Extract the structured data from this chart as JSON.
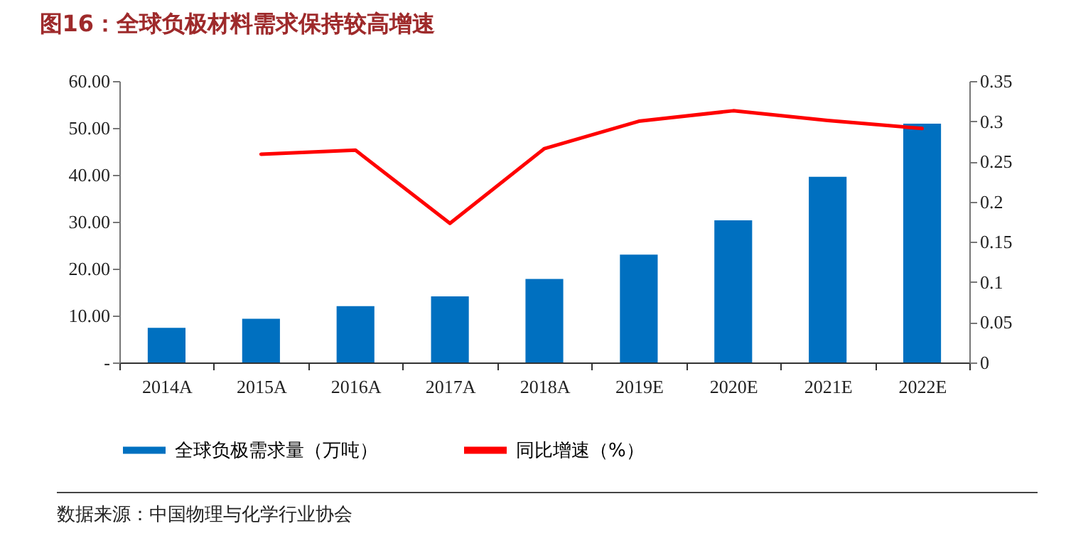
{
  "chart_data": {
    "type": "bar",
    "title": "图16：全球负极材料需求保持较高增速",
    "categories": [
      "2014A",
      "2015A",
      "2016A",
      "2017A",
      "2018A",
      "2019E",
      "2020E",
      "2021E",
      "2022E"
    ],
    "series": [
      {
        "name": "全球负极需求量（万吨）",
        "color": "#0070c0",
        "values": [
          7.4,
          9.3,
          12.0,
          14.1,
          17.8,
          23.0,
          30.3,
          39.6,
          50.9
        ]
      },
      {
        "name": "同比增速（%）",
        "type": "line",
        "axis": "y2",
        "color": "#ff0000",
        "values": [
          null,
          0.259,
          0.264,
          0.173,
          0.266,
          0.3,
          0.313,
          0.301,
          0.291
        ]
      }
    ],
    "ylim": [
      0,
      60
    ],
    "yticks": [
      {
        "value": 0,
        "label": "-"
      },
      {
        "value": 10,
        "label": "10.00"
      },
      {
        "value": 20,
        "label": "20.00"
      },
      {
        "value": 30,
        "label": "30.00"
      },
      {
        "value": 40,
        "label": "40.00"
      },
      {
        "value": 50,
        "label": "50.00"
      },
      {
        "value": 60,
        "label": "60.00"
      }
    ],
    "y2lim": [
      0,
      0.35
    ],
    "y2ticks": [
      0,
      0.05,
      0.1,
      0.15,
      0.2,
      0.25,
      0.3,
      0.35
    ],
    "legend": "bottom",
    "grid": false,
    "marker": "none",
    "annotations": [
      "数据来源：中国物理与化学行业协会"
    ]
  }
}
